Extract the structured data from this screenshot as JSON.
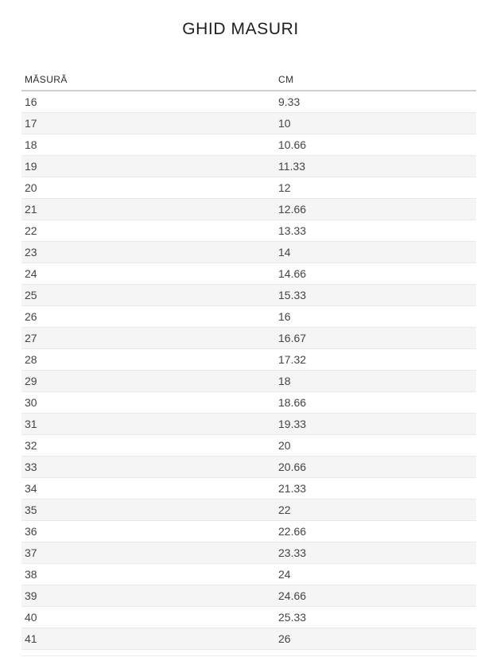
{
  "page": {
    "title": "GHID MASURI"
  },
  "table": {
    "columns": [
      {
        "label": "MĂSURĂ"
      },
      {
        "label": "CM"
      }
    ],
    "rows": [
      {
        "size": "16",
        "cm": "9.33"
      },
      {
        "size": "17",
        "cm": "10"
      },
      {
        "size": "18",
        "cm": "10.66"
      },
      {
        "size": "19",
        "cm": "11.33"
      },
      {
        "size": "20",
        "cm": "12"
      },
      {
        "size": "21",
        "cm": "12.66"
      },
      {
        "size": "22",
        "cm": "13.33"
      },
      {
        "size": "23",
        "cm": "14"
      },
      {
        "size": "24",
        "cm": "14.66"
      },
      {
        "size": "25",
        "cm": "15.33"
      },
      {
        "size": "26",
        "cm": "16"
      },
      {
        "size": "27",
        "cm": "16.67"
      },
      {
        "size": "28",
        "cm": "17.32"
      },
      {
        "size": "29",
        "cm": "18"
      },
      {
        "size": "30",
        "cm": "18.66"
      },
      {
        "size": "31",
        "cm": "19.33"
      },
      {
        "size": "32",
        "cm": "20"
      },
      {
        "size": "33",
        "cm": "20.66"
      },
      {
        "size": "34",
        "cm": "21.33"
      },
      {
        "size": "35",
        "cm": "22"
      },
      {
        "size": "36",
        "cm": "22.66"
      },
      {
        "size": "37",
        "cm": "23.33"
      },
      {
        "size": "38",
        "cm": "24"
      },
      {
        "size": "39",
        "cm": "24.66"
      },
      {
        "size": "40",
        "cm": "25.33"
      },
      {
        "size": "41",
        "cm": "26"
      }
    ]
  },
  "colors": {
    "page_background": "#ffffff",
    "title_text": "#1e1e1e",
    "header_text": "#2d2d2d",
    "cell_text": "#444444",
    "stripe_row": "#f5f5f5",
    "row_border": "#e9e9e9",
    "header_border": "#cfcfcf"
  },
  "chart_data": {
    "type": "table",
    "title": "GHID MASURI",
    "columns": [
      "MĂSURĂ",
      "CM"
    ],
    "rows": [
      [
        16,
        9.33
      ],
      [
        17,
        10
      ],
      [
        18,
        10.66
      ],
      [
        19,
        11.33
      ],
      [
        20,
        12
      ],
      [
        21,
        12.66
      ],
      [
        22,
        13.33
      ],
      [
        23,
        14
      ],
      [
        24,
        14.66
      ],
      [
        25,
        15.33
      ],
      [
        26,
        16
      ],
      [
        27,
        16.67
      ],
      [
        28,
        17.32
      ],
      [
        29,
        18
      ],
      [
        30,
        18.66
      ],
      [
        31,
        19.33
      ],
      [
        32,
        20
      ],
      [
        33,
        20.66
      ],
      [
        34,
        21.33
      ],
      [
        35,
        22
      ],
      [
        36,
        22.66
      ],
      [
        37,
        23.33
      ],
      [
        38,
        24
      ],
      [
        39,
        24.66
      ],
      [
        40,
        25.33
      ],
      [
        41,
        26
      ]
    ],
    "layout": {
      "striped": true,
      "stripe_pattern": "even rows shaded",
      "header_position": "top",
      "last_row_partially_cut": true
    }
  }
}
